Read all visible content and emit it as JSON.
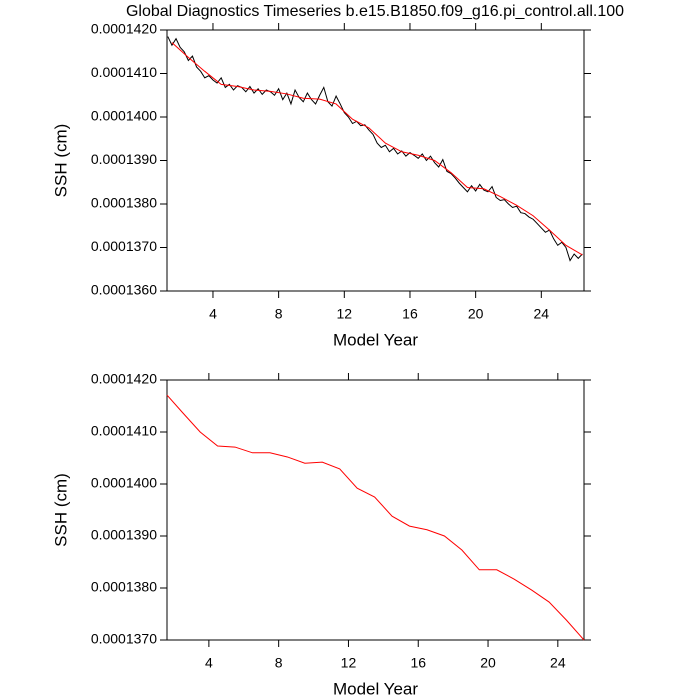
{
  "chart_data": [
    {
      "type": "line",
      "title": "Global Diagnostics Timeseries b.e15.B1850.f09_g16.pi_control.all.100",
      "x_label": "Model Year",
      "y_label": "SSH (cm)",
      "xlim": [
        1.2,
        26.6
      ],
      "ylim": [
        0.000136,
        0.000142
      ],
      "xticks": [
        4,
        8,
        12,
        16,
        20,
        24
      ],
      "yticks": [
        {
          "value": 0.000136,
          "label": "0.0001360"
        },
        {
          "value": 0.000137,
          "label": "0.0001370"
        },
        {
          "value": 0.000138,
          "label": "0.0001380"
        },
        {
          "value": 0.000139,
          "label": "0.0001390"
        },
        {
          "value": 0.00014,
          "label": "0.0001400"
        },
        {
          "value": 0.000141,
          "label": "0.0001410"
        },
        {
          "value": 0.000142,
          "label": "0.0001420"
        }
      ],
      "series": [
        {
          "color": "#000000",
          "x": [
            1.25,
            1.5,
            1.75,
            2,
            2.25,
            2.5,
            2.75,
            3,
            3.25,
            3.5,
            3.75,
            4,
            4.25,
            4.5,
            4.75,
            5,
            5.25,
            5.5,
            5.75,
            6,
            6.25,
            6.5,
            6.75,
            7,
            7.25,
            7.5,
            7.75,
            8,
            8.25,
            8.5,
            8.75,
            9,
            9.25,
            9.5,
            9.75,
            10,
            10.25,
            10.5,
            10.75,
            11,
            11.25,
            11.5,
            11.75,
            12,
            12.25,
            12.5,
            12.75,
            13,
            13.25,
            13.5,
            13.75,
            14,
            14.25,
            14.5,
            14.75,
            15,
            15.25,
            15.5,
            15.75,
            16,
            16.25,
            16.5,
            16.75,
            17,
            17.25,
            17.5,
            17.75,
            18,
            18.25,
            18.5,
            18.75,
            19,
            19.25,
            19.5,
            19.75,
            20,
            20.25,
            20.5,
            20.75,
            21,
            21.25,
            21.5,
            21.75,
            22,
            22.25,
            22.5,
            22.75,
            23,
            23.25,
            23.5,
            23.75,
            24,
            24.25,
            24.5,
            24.75,
            25,
            25.25,
            25.5,
            25.75,
            26,
            26.25,
            26.5
          ],
          "values": [
            0.00014185,
            0.00014165,
            0.0001418,
            0.0001416,
            0.0001415,
            0.0001413,
            0.0001414,
            0.00014115,
            0.00014105,
            0.0001409,
            0.00014095,
            0.00014085,
            0.00014078,
            0.0001409,
            0.00014068,
            0.00014075,
            0.00014062,
            0.00014072,
            0.00014068,
            0.00014058,
            0.0001407,
            0.00014055,
            0.00014065,
            0.00014052,
            0.00014062,
            0.00014058,
            0.0001405,
            0.00014065,
            0.0001404,
            0.00014055,
            0.0001403,
            0.00014062,
            0.00014045,
            0.00014035,
            0.00014055,
            0.0001404,
            0.0001403,
            0.0001405,
            0.00014068,
            0.00014035,
            0.00014025,
            0.00014048,
            0.0001403,
            0.0001401,
            0.00014,
            0.00013985,
            0.0001399,
            0.0001398,
            0.00013982,
            0.0001397,
            0.0001396,
            0.0001394,
            0.0001393,
            0.00013935,
            0.0001392,
            0.00013928,
            0.00013915,
            0.00013922,
            0.0001391,
            0.00013918,
            0.00013912,
            0.00013905,
            0.00013915,
            0.000139,
            0.0001391,
            0.00013895,
            0.00013885,
            0.00013902,
            0.00013875,
            0.0001387,
            0.0001386,
            0.00013848,
            0.00013838,
            0.00013828,
            0.00013842,
            0.0001383,
            0.00013845,
            0.00013832,
            0.00013828,
            0.0001384,
            0.00013815,
            0.00013808,
            0.0001381,
            0.000138,
            0.00013792,
            0.00013795,
            0.0001378,
            0.00013778,
            0.0001377,
            0.00013765,
            0.00013755,
            0.00013745,
            0.00013735,
            0.0001374,
            0.0001372,
            0.00013705,
            0.00013712,
            0.000137,
            0.0001367,
            0.00013685,
            0.00013675,
            0.00013685
          ]
        },
        {
          "color": "#ff0000",
          "x": [
            1.5,
            2.5,
            3.5,
            4.5,
            5.5,
            6.5,
            7.5,
            8.5,
            9.5,
            10.5,
            11.5,
            12.5,
            13.5,
            14.5,
            15.5,
            16.5,
            17.5,
            18.5,
            19.5,
            20.5,
            21.5,
            22.5,
            23.5,
            24.5,
            25.5,
            26.5
          ],
          "values": [
            0.00014171,
            0.00014137,
            0.00014105,
            0.00014075,
            0.0001407,
            0.00014062,
            0.00014059,
            0.00014053,
            0.00014043,
            0.00014041,
            0.0001403,
            0.00013995,
            0.00013975,
            0.0001394,
            0.0001392,
            0.00013912,
            0.000139,
            0.00013872,
            0.00013838,
            0.00013835,
            0.00013817,
            0.00013797,
            0.00013773,
            0.0001374,
            0.00013705,
            0.00013683
          ]
        }
      ]
    },
    {
      "type": "line",
      "x_label": "Model Year",
      "y_label": "SSH (cm)",
      "xlim": [
        1.6,
        25.5
      ],
      "ylim": [
        0.000137,
        0.000142
      ],
      "xticks": [
        4,
        8,
        12,
        16,
        20,
        24
      ],
      "yticks": [
        {
          "value": 0.000137,
          "label": "0.0001370"
        },
        {
          "value": 0.000138,
          "label": "0.0001380"
        },
        {
          "value": 0.000139,
          "label": "0.0001390"
        },
        {
          "value": 0.00014,
          "label": "0.0001400"
        },
        {
          "value": 0.000141,
          "label": "0.0001410"
        },
        {
          "value": 0.000142,
          "label": "0.0001420"
        }
      ],
      "series": [
        {
          "color": "#ff0000",
          "x": [
            1.6,
            2.5,
            3.5,
            4.5,
            5.5,
            6.5,
            7.5,
            8.5,
            9.5,
            10.5,
            11.5,
            12.5,
            13.5,
            14.5,
            15.5,
            16.5,
            17.5,
            18.5,
            19.5,
            20.5,
            21.5,
            22.5,
            23.5,
            24.5,
            25.5
          ],
          "values": [
            0.00014171,
            0.00014137,
            0.000141,
            0.00014073,
            0.00014071,
            0.0001406,
            0.0001406,
            0.00014052,
            0.0001404,
            0.00014042,
            0.00014029,
            0.00013992,
            0.00013975,
            0.00013938,
            0.00013919,
            0.00013912,
            0.000139,
            0.00013873,
            0.00013835,
            0.00013835,
            0.00013817,
            0.00013796,
            0.00013773,
            0.00013738,
            0.000137
          ]
        }
      ]
    }
  ]
}
